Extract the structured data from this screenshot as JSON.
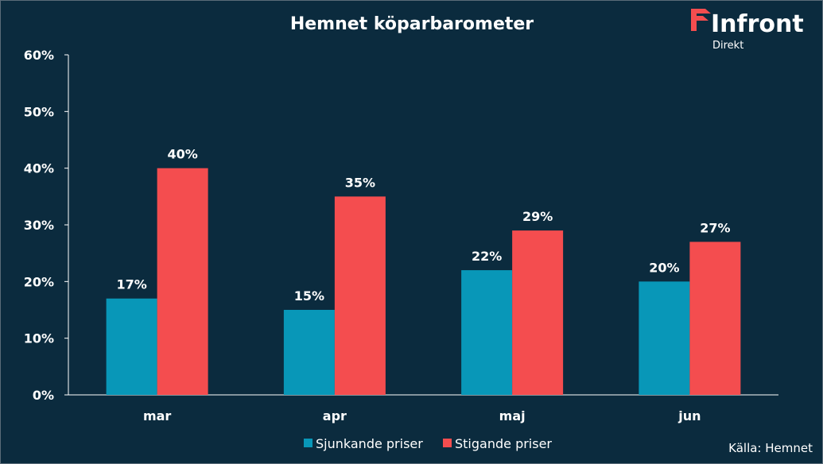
{
  "logo": {
    "brand": "Infront",
    "sub": "Direkt"
  },
  "source": "Källa:  Hemnet",
  "colors": {
    "background": "#0b2b3e",
    "series1": "#0897b8",
    "series2": "#f44d4f",
    "axis": "#ffffff"
  },
  "chart_data": {
    "type": "bar",
    "title": "Hemnet köparbarometer",
    "categories": [
      "mar",
      "apr",
      "maj",
      "jun"
    ],
    "series": [
      {
        "name": "Sjunkande priser",
        "values": [
          17,
          15,
          22,
          20
        ]
      },
      {
        "name": "Stigande priser",
        "values": [
          40,
          35,
          29,
          27
        ]
      }
    ],
    "ylim": [
      0,
      60
    ],
    "yticks": [
      0,
      10,
      20,
      30,
      40,
      50,
      60
    ],
    "ytick_labels": [
      "0%",
      "10%",
      "20%",
      "30%",
      "40%",
      "50%",
      "60%"
    ],
    "data_labels": [
      [
        "17%",
        "15%",
        "22%",
        "20%"
      ],
      [
        "40%",
        "35%",
        "29%",
        "27%"
      ]
    ],
    "grid": false,
    "legend": "bottom",
    "xlabel": "",
    "ylabel": ""
  }
}
